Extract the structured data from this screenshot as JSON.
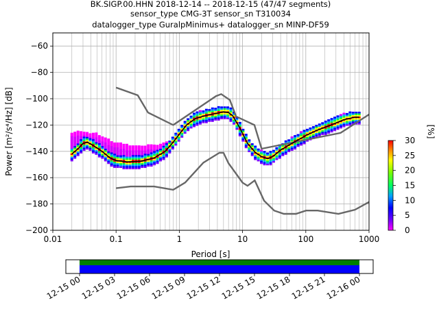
{
  "chart_data": [
    {
      "type": "heatmap",
      "title_lines": [
        "BK.SIGP.00.HHN   2018-12-14 -- 2018-12-15  (47/47 segments)",
        "sensor_type CMG-3T sensor_sn T310034",
        "datalogger_type GuralpMinimus+ datalogger_sn MINP-DF59"
      ],
      "xlabel": "Period [s]",
      "ylabel": "Power [m²/s⁴/Hz] [dB]",
      "xscale": "log",
      "xlim": [
        0.01,
        1000
      ],
      "ylim": [
        -200,
        -50
      ],
      "x_ticks": [
        {
          "v": 0.01,
          "label": "0.01"
        },
        {
          "v": 0.1,
          "label": "0.1"
        },
        {
          "v": 1,
          "label": "1"
        },
        {
          "v": 10,
          "label": "10"
        },
        {
          "v": 100,
          "label": "100"
        },
        {
          "v": 1000,
          "label": "1000"
        }
      ],
      "y_ticks": [
        -200,
        -180,
        -160,
        -140,
        -120,
        -100,
        -80,
        -60
      ],
      "grid": true,
      "noise_models": [
        {
          "id": "nhnm",
          "points": [
            [
              0.1,
              -91.5
            ],
            [
              0.22,
              -97.4
            ],
            [
              0.32,
              -110.5
            ],
            [
              0.8,
              -120.0
            ],
            [
              3.8,
              -98.0
            ],
            [
              4.6,
              -96.5
            ],
            [
              6.3,
              -101.0
            ],
            [
              7.9,
              -113.5
            ],
            [
              15.4,
              -120.0
            ],
            [
              20,
              -138.0
            ],
            [
              354.8,
              -126.0
            ],
            [
              1000,
              -112.0
            ]
          ]
        },
        {
          "id": "nlnm",
          "points": [
            [
              0.1,
              -168.0
            ],
            [
              0.17,
              -166.7
            ],
            [
              0.4,
              -166.7
            ],
            [
              0.8,
              -169.2
            ],
            [
              1.24,
              -163.7
            ],
            [
              2.4,
              -148.6
            ],
            [
              4.3,
              -141.1
            ],
            [
              5.0,
              -141.1
            ],
            [
              6.0,
              -149.0
            ],
            [
              10.0,
              -163.8
            ],
            [
              12.0,
              -166.2
            ],
            [
              15.6,
              -162.1
            ],
            [
              21.9,
              -177.5
            ],
            [
              31.6,
              -185.0
            ],
            [
              45,
              -187.5
            ],
            [
              70,
              -187.5
            ],
            [
              101,
              -185.0
            ],
            [
              154,
              -185.0
            ],
            [
              328,
              -187.5
            ],
            [
              600,
              -184.4
            ],
            [
              1000,
              -178.5
            ]
          ]
        }
      ],
      "mean_curve": {
        "points": [
          [
            0.02,
            -142
          ],
          [
            0.025,
            -138
          ],
          [
            0.03,
            -134
          ],
          [
            0.035,
            -133
          ],
          [
            0.045,
            -136
          ],
          [
            0.06,
            -140
          ],
          [
            0.08,
            -145
          ],
          [
            0.1,
            -147
          ],
          [
            0.15,
            -148
          ],
          [
            0.25,
            -147.5
          ],
          [
            0.4,
            -145
          ],
          [
            0.6,
            -140
          ],
          [
            0.8,
            -133
          ],
          [
            1.0,
            -127
          ],
          [
            1.3,
            -120
          ],
          [
            1.8,
            -115
          ],
          [
            2.5,
            -113
          ],
          [
            3.5,
            -111.5
          ],
          [
            5.0,
            -110
          ],
          [
            6.0,
            -110.5
          ],
          [
            7.0,
            -113
          ],
          [
            9,
            -122
          ],
          [
            12,
            -134
          ],
          [
            16,
            -141
          ],
          [
            20,
            -144
          ],
          [
            25,
            -145.5
          ],
          [
            30,
            -144
          ],
          [
            40,
            -139
          ],
          [
            60,
            -134
          ],
          [
            100,
            -128
          ],
          [
            150,
            -124
          ],
          [
            250,
            -120
          ],
          [
            400,
            -116
          ],
          [
            600,
            -114
          ],
          [
            700,
            -114
          ]
        ]
      },
      "spread_curve": {
        "points": [
          [
            0.02,
            -127
          ],
          [
            0.03,
            -126
          ],
          [
            0.05,
            -128
          ],
          [
            0.07,
            -132
          ],
          [
            0.1,
            -135
          ],
          [
            0.15,
            -137
          ],
          [
            0.3,
            -137
          ],
          [
            0.5,
            -136
          ],
          [
            0.8,
            -133
          ],
          [
            1.0,
            -127
          ],
          [
            1.3,
            -120
          ],
          [
            1.8,
            -115
          ],
          [
            2.5,
            -113
          ],
          [
            3.5,
            -111.5
          ],
          [
            5.0,
            -110
          ],
          [
            6.0,
            -110.5
          ],
          [
            7.0,
            -113
          ],
          [
            9,
            -122
          ],
          [
            12,
            -134
          ],
          [
            16,
            -141
          ],
          [
            20,
            -144
          ],
          [
            25,
            -145.5
          ],
          [
            30,
            -144
          ],
          [
            40,
            -139
          ],
          [
            60,
            -134
          ],
          [
            100,
            -128
          ],
          [
            150,
            -124
          ],
          [
            250,
            -120
          ],
          [
            400,
            -116
          ],
          [
            600,
            -114
          ],
          [
            700,
            -114
          ]
        ]
      },
      "colorbar": {
        "label": "[%]",
        "range": [
          0,
          30
        ],
        "ticks": [
          0,
          5,
          10,
          15,
          20,
          25,
          30
        ]
      }
    },
    {
      "type": "bar",
      "description": "data coverage",
      "x_ticks": [
        "12-15 00",
        "12-15 03",
        "12-15 06",
        "12-15 09",
        "12-15 12",
        "12-15 15",
        "12-15 18",
        "12-15 21",
        "12-16 00"
      ],
      "coverage_colors": {
        "top": "#008000",
        "bottom": "#0000ff"
      }
    }
  ]
}
